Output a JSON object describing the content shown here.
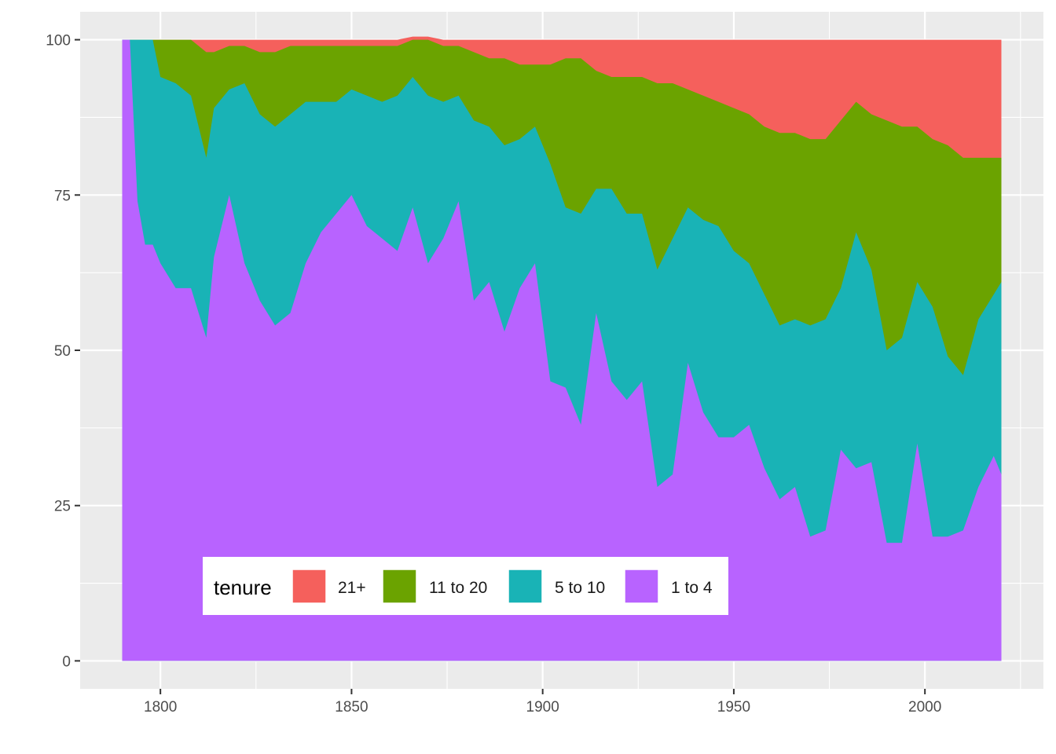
{
  "chart_data": {
    "type": "area",
    "stacked": true,
    "title": "",
    "xlabel": "",
    "ylabel": "",
    "xlim": [
      1779,
      2031
    ],
    "ylim": [
      -4.5,
      104.5
    ],
    "x_ticks": [
      {
        "value": 1800,
        "label": "1800"
      },
      {
        "value": 1850,
        "label": "1850"
      },
      {
        "value": 1900,
        "label": "1900"
      },
      {
        "value": 1950,
        "label": "1950"
      },
      {
        "value": 2000,
        "label": "2000"
      }
    ],
    "y_ticks": [
      {
        "value": 0,
        "label": "0"
      },
      {
        "value": 25,
        "label": "25"
      },
      {
        "value": 50,
        "label": "50"
      },
      {
        "value": 75,
        "label": "75"
      },
      {
        "value": 100,
        "label": "100"
      }
    ],
    "grid": true,
    "legend": {
      "title": "tenure",
      "placement": "bottom-left inside",
      "entries": [
        "21+",
        "11 to 20",
        "5 to 10",
        "1 to 4"
      ]
    },
    "x": [
      1790,
      1792,
      1794,
      1796,
      1798,
      1800,
      1804,
      1808,
      1812,
      1814,
      1818,
      1822,
      1826,
      1830,
      1834,
      1838,
      1842,
      1846,
      1850,
      1854,
      1858,
      1862,
      1866,
      1870,
      1874,
      1878,
      1882,
      1886,
      1890,
      1894,
      1898,
      1902,
      1906,
      1910,
      1914,
      1918,
      1922,
      1926,
      1930,
      1934,
      1938,
      1942,
      1946,
      1950,
      1954,
      1958,
      1962,
      1966,
      1970,
      1974,
      1978,
      1982,
      1986,
      1990,
      1994,
      1998,
      2002,
      2006,
      2010,
      2014,
      2018,
      2020
    ],
    "series": [
      {
        "name": "1 to 4",
        "color": "#B863FF",
        "values": [
          100,
          100,
          74,
          67,
          67,
          64,
          60,
          60,
          52,
          65,
          75,
          64,
          58,
          54,
          56,
          64,
          69,
          72,
          75,
          70,
          68,
          66,
          73,
          64,
          68,
          74,
          58,
          61,
          53,
          60,
          64,
          45,
          44,
          38,
          56,
          45,
          42,
          45,
          28,
          30,
          48,
          40,
          36,
          36,
          38,
          31,
          26,
          28,
          20,
          21,
          34,
          31,
          32,
          19,
          19,
          35,
          20,
          20,
          21,
          28,
          33,
          30
        ],
        "values_cumulative_top": true
      },
      {
        "name": "5 to 10",
        "color": "#19B3B6",
        "values": [
          100,
          100,
          100,
          100,
          100,
          94,
          93,
          91,
          81,
          89,
          92,
          93,
          88,
          86,
          88,
          90,
          90,
          90,
          92,
          91,
          90,
          91,
          94,
          91,
          90,
          91,
          87,
          86,
          83,
          84,
          86,
          80,
          73,
          72,
          76,
          76,
          72,
          72,
          63,
          68,
          73,
          71,
          70,
          66,
          64,
          59,
          54,
          55,
          54,
          55,
          60,
          69,
          63,
          50,
          52,
          61,
          57,
          49,
          46,
          55,
          59,
          61
        ]
      },
      {
        "name": "11 to 20",
        "color": "#6BA300",
        "values": [
          100,
          100,
          100,
          100,
          100,
          100,
          100,
          100,
          98,
          98,
          99,
          99,
          98,
          98,
          99,
          99,
          99,
          99,
          99,
          99,
          99,
          99,
          100,
          100,
          99,
          99,
          98,
          97,
          97,
          96,
          96,
          96,
          97,
          97,
          95,
          94,
          94,
          94,
          93,
          93,
          92,
          91,
          90,
          89,
          88,
          86,
          85,
          85,
          84,
          84,
          87,
          90,
          88,
          87,
          86,
          86,
          84,
          83,
          81,
          81,
          81,
          81
        ]
      },
      {
        "name": "21+",
        "color": "#F5605C",
        "values": [
          100,
          100,
          100,
          100,
          100,
          100,
          100,
          100,
          100,
          100,
          100,
          100,
          100,
          100,
          100,
          100,
          100,
          100,
          100,
          100,
          100,
          100,
          100.5,
          100.5,
          100,
          100,
          100,
          100,
          100,
          100,
          100,
          100,
          100,
          100,
          100,
          100,
          100,
          100,
          100,
          100,
          100,
          100,
          100,
          100,
          100,
          100,
          100,
          100,
          100,
          100,
          100,
          100,
          100,
          100,
          100,
          100,
          100,
          100,
          100,
          100,
          100,
          100
        ]
      }
    ],
    "note_values": "each series value is the cumulative upper boundary of its band (0-100 share)"
  }
}
